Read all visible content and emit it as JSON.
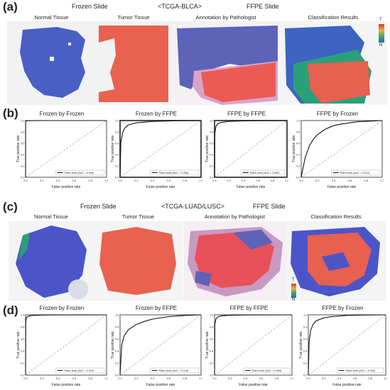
{
  "panels": {
    "a": {
      "label": "(a)",
      "headers": {
        "frozen": "Frozen Slide",
        "dataset": "<TCGA-BLCA>",
        "ffpe": "FFPE Slide"
      },
      "subtitles": [
        "Normal Tissue",
        "Tumor Tissue",
        "Annotation by Pathologist",
        "Classification Results"
      ],
      "legend": {
        "top": "T",
        "bottom": "N"
      }
    },
    "b": {
      "label": "(b)"
    },
    "c": {
      "label": "(c)",
      "headers": {
        "frozen": "Frozen Slide",
        "dataset": "<TCGA-LUAD/LUSC>",
        "ffpe": "FFPE Slide"
      },
      "subtitles": [
        "Normal Tissue",
        "Tumor Tissue",
        "Annotation by Pathologist",
        "Classification Results"
      ],
      "legend": {
        "top": "T",
        "bottom": "N"
      }
    },
    "d": {
      "label": "(d)"
    }
  },
  "colors": {
    "normal_blue": "#4a5fc4",
    "tumor_red": "#e8624f",
    "annotation_purple": "#5d63b8",
    "roc_line": "#111111",
    "diagonal": "#999999"
  },
  "chart_data": [
    {
      "type": "line",
      "title": "Frozen by Frozen",
      "xlabel": "False positive rate",
      "ylabel": "True positive rate",
      "xlim": [
        0,
        1
      ],
      "ylim": [
        0,
        1
      ],
      "ticks": [
        "0.0",
        "0.2",
        "0.4",
        "0.6",
        "0.8",
        "1.0"
      ],
      "legend": "Patch level (AUC = 0.999)",
      "series": [
        {
          "x": [
            0,
            0.001,
            0.003,
            0.01,
            0.03,
            0.1,
            0.3,
            1
          ],
          "y": [
            0,
            0.97,
            0.99,
            0.995,
            0.998,
            0.999,
            1,
            1
          ]
        }
      ]
    },
    {
      "type": "line",
      "title": "Frozen by FFPE",
      "xlabel": "False positive rate",
      "ylabel": "True positive rate",
      "xlim": [
        0,
        1
      ],
      "ylim": [
        0,
        1
      ],
      "ticks": [
        "0.0",
        "0.2",
        "0.4",
        "0.6",
        "0.8",
        "1.0"
      ],
      "legend": "Patch level (AUC = 0.955)",
      "series": [
        {
          "x": [
            0,
            0.01,
            0.03,
            0.06,
            0.1,
            0.2,
            0.4,
            0.7,
            1
          ],
          "y": [
            0,
            0.6,
            0.78,
            0.87,
            0.92,
            0.96,
            0.985,
            0.996,
            1
          ]
        }
      ]
    },
    {
      "type": "line",
      "title": "FFPE by FFPE",
      "xlabel": "False positive rate",
      "ylabel": "True positive rate",
      "xlim": [
        0,
        1
      ],
      "ylim": [
        0,
        1
      ],
      "ticks": [
        "0.0",
        "0.2",
        "0.4",
        "0.6",
        "0.8",
        "1.0"
      ],
      "legend": "Patch level (AUC = 0.982)",
      "series": [
        {
          "x": [
            0,
            0.005,
            0.02,
            0.05,
            0.1,
            0.2,
            0.4,
            0.7,
            1
          ],
          "y": [
            0,
            0.78,
            0.9,
            0.95,
            0.97,
            0.985,
            0.995,
            0.999,
            1
          ]
        }
      ]
    },
    {
      "type": "line",
      "title": "FFPE by Frozen",
      "xlabel": "False positive rate",
      "ylabel": "True positive rate",
      "xlim": [
        0,
        1
      ],
      "ylim": [
        0,
        1
      ],
      "ticks": [
        "0.0",
        "0.2",
        "0.4",
        "0.6",
        "0.8",
        "1.0"
      ],
      "legend": "Patch level (AUC = 0.912)",
      "series": [
        {
          "x": [
            0,
            0.02,
            0.05,
            0.1,
            0.15,
            0.2,
            0.3,
            0.4,
            0.5,
            0.7,
            1
          ],
          "y": [
            0,
            0.15,
            0.35,
            0.55,
            0.67,
            0.75,
            0.85,
            0.91,
            0.94,
            0.98,
            1
          ]
        }
      ]
    },
    {
      "type": "line",
      "title": "Frozen by Frozen",
      "xlabel": "False positive rate",
      "ylabel": "True positive rate",
      "xlim": [
        0,
        1
      ],
      "ylim": [
        0,
        1
      ],
      "ticks": [
        "0.0",
        "0.2",
        "0.4",
        "0.6",
        "0.8",
        "1.0"
      ],
      "legend": "Patch level (AUC = 0.992)",
      "series": [
        {
          "x": [
            0,
            0.003,
            0.01,
            0.03,
            0.08,
            0.2,
            0.5,
            1
          ],
          "y": [
            0,
            0.88,
            0.95,
            0.975,
            0.99,
            0.996,
            0.999,
            1
          ]
        }
      ]
    },
    {
      "type": "line",
      "title": "Frozen by FFPE",
      "xlabel": "False positive rate",
      "ylabel": "True positive rate",
      "xlim": [
        0,
        1
      ],
      "ylim": [
        0,
        1
      ],
      "ticks": [
        "0.0",
        "0.2",
        "0.4",
        "0.6",
        "0.8",
        "1.0"
      ],
      "legend": "Patch level (AUC = 0.915)",
      "series": [
        {
          "x": [
            0,
            0.02,
            0.05,
            0.1,
            0.2,
            0.3,
            0.4,
            0.6,
            0.8,
            1
          ],
          "y": [
            0,
            0.5,
            0.65,
            0.75,
            0.84,
            0.89,
            0.93,
            0.97,
            0.99,
            1
          ]
        }
      ]
    },
    {
      "type": "line",
      "title": "FFPE by FFPE",
      "xlabel": "False positive rate",
      "ylabel": "True positive rate",
      "xlim": [
        0,
        1
      ],
      "ylim": [
        0,
        1
      ],
      "ticks": [
        "0.0",
        "0.2",
        "0.4",
        "0.6",
        "0.8",
        "1.0"
      ],
      "legend": "Patch level (AUC = 0.989)",
      "series": [
        {
          "x": [
            0,
            0.005,
            0.02,
            0.05,
            0.1,
            0.2,
            0.4,
            0.7,
            1
          ],
          "y": [
            0,
            0.85,
            0.94,
            0.97,
            0.985,
            0.993,
            0.998,
            0.999,
            1
          ]
        }
      ]
    },
    {
      "type": "line",
      "title": "FFPE by Frozen",
      "xlabel": "False positive rate",
      "ylabel": "True positive rate",
      "xlim": [
        0,
        1
      ],
      "ylim": [
        0,
        1
      ],
      "ticks": [
        "0.0",
        "0.2",
        "0.4",
        "0.6",
        "0.8",
        "1.0"
      ],
      "legend": "Patch level (AUC = 0.933)",
      "series": [
        {
          "x": [
            0,
            0.01,
            0.03,
            0.06,
            0.1,
            0.2,
            0.3,
            0.5,
            0.7,
            1
          ],
          "y": [
            0,
            0.55,
            0.74,
            0.84,
            0.9,
            0.95,
            0.97,
            0.99,
            0.996,
            1
          ]
        }
      ]
    }
  ]
}
